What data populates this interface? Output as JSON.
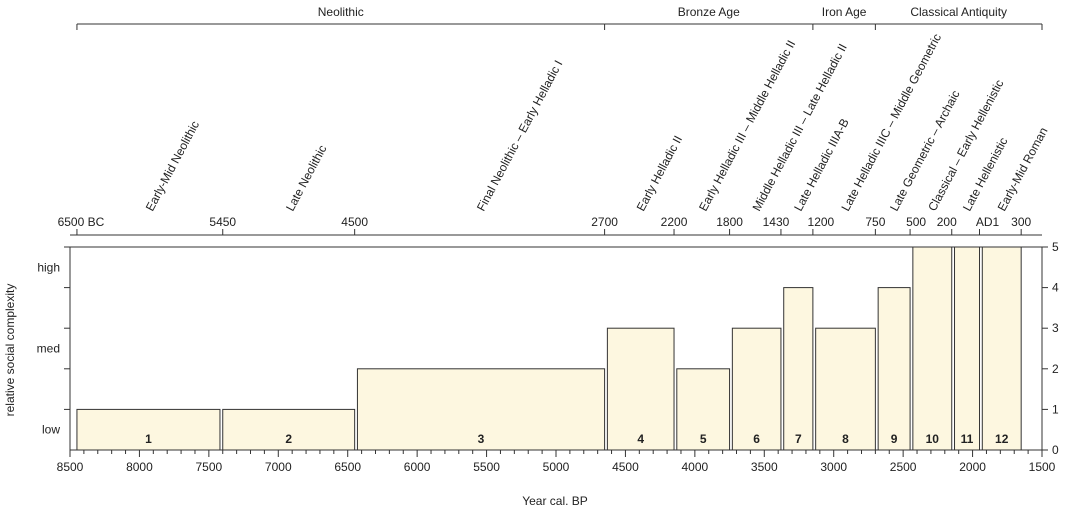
{
  "chart_data": {
    "type": "bar",
    "xlabel": "Year cal. BP",
    "ylabel": "relative social complexity",
    "bar_fill": "#fdf7e0",
    "x_ticks": [
      8500,
      8000,
      7500,
      7000,
      6500,
      6000,
      5500,
      5000,
      4500,
      4000,
      3500,
      3000,
      2500,
      2000,
      1500
    ],
    "xlim": [
      8500,
      1500
    ],
    "ylim": [
      0,
      5
    ],
    "y_ticks_right": [
      0,
      1,
      2,
      3,
      4,
      5
    ],
    "y_labels_left": [
      {
        "label": "low",
        "value": 0.5
      },
      {
        "label": "med",
        "value": 2.5
      },
      {
        "label": "high",
        "value": 4.5
      }
    ],
    "bars": [
      {
        "label": "1",
        "start": 8450,
        "end": 7420,
        "value": 1
      },
      {
        "label": "2",
        "start": 7400,
        "end": 6450,
        "value": 1
      },
      {
        "label": "3",
        "start": 6430,
        "end": 4650,
        "value": 2
      },
      {
        "label": "4",
        "start": 4630,
        "end": 4150,
        "value": 3
      },
      {
        "label": "5",
        "start": 4130,
        "end": 3750,
        "value": 2
      },
      {
        "label": "6",
        "start": 3730,
        "end": 3380,
        "value": 3
      },
      {
        "label": "7",
        "start": 3360,
        "end": 3150,
        "value": 4
      },
      {
        "label": "8",
        "start": 3130,
        "end": 2700,
        "value": 3
      },
      {
        "label": "9",
        "start": 2680,
        "end": 2450,
        "value": 4
      },
      {
        "label": "10",
        "start": 2430,
        "end": 2150,
        "value": 5
      },
      {
        "label": "11",
        "start": 2130,
        "end": 1950,
        "value": 5
      },
      {
        "label": "12",
        "start": 1930,
        "end": 1650,
        "value": 5
      }
    ],
    "top_axis": {
      "ticks": [
        {
          "label": "6500 BC",
          "bp": 8450
        },
        {
          "label": "5450",
          "bp": 7400
        },
        {
          "label": "4500",
          "bp": 6450
        },
        {
          "label": "2700",
          "bp": 4650
        },
        {
          "label": "2200",
          "bp": 4150
        },
        {
          "label": "1800",
          "bp": 3750
        },
        {
          "label": "1430",
          "bp": 3380
        },
        {
          "label": "1200",
          "bp": 3150
        },
        {
          "label": "750",
          "bp": 2700
        },
        {
          "label": "500",
          "bp": 2450
        },
        {
          "label": "200",
          "bp": 2150
        },
        {
          "label": "AD1",
          "bp": 1950
        },
        {
          "label": "300",
          "bp": 1650
        }
      ],
      "phases": [
        {
          "label": "Early-Mid Neolithic",
          "bp": 7935
        },
        {
          "label": "Late Neolithic",
          "bp": 6925
        },
        {
          "label": "Final Neolithic – Early Helladic I",
          "bp": 5550
        },
        {
          "label": "Early Helladic II",
          "bp": 4400
        },
        {
          "label": "Early Helladic III – Middle Helladic II",
          "bp": 3950
        },
        {
          "label": "Middle Helladic III – Late Helladic II",
          "bp": 3565
        },
        {
          "label": "Late Helladic IIIA-B",
          "bp": 3265
        },
        {
          "label": "Late Helladic IIIC – Middle Geometric",
          "bp": 2925
        },
        {
          "label": "Late Geometric – Archaic",
          "bp": 2575
        },
        {
          "label": "Classical – Early Hellenistic",
          "bp": 2300
        },
        {
          "label": "Late Hellenistic",
          "bp": 2050
        },
        {
          "label": "Early-Mid Roman",
          "bp": 1800
        }
      ]
    },
    "periods": [
      {
        "label": "Neolithic",
        "start": 8450,
        "end": 4650
      },
      {
        "label": "Bronze Age",
        "start": 4650,
        "end": 3150
      },
      {
        "label": "Iron Age",
        "start": 3150,
        "end": 2700
      },
      {
        "label": "Classical Antiquity",
        "start": 2700,
        "end": 1500
      }
    ]
  }
}
